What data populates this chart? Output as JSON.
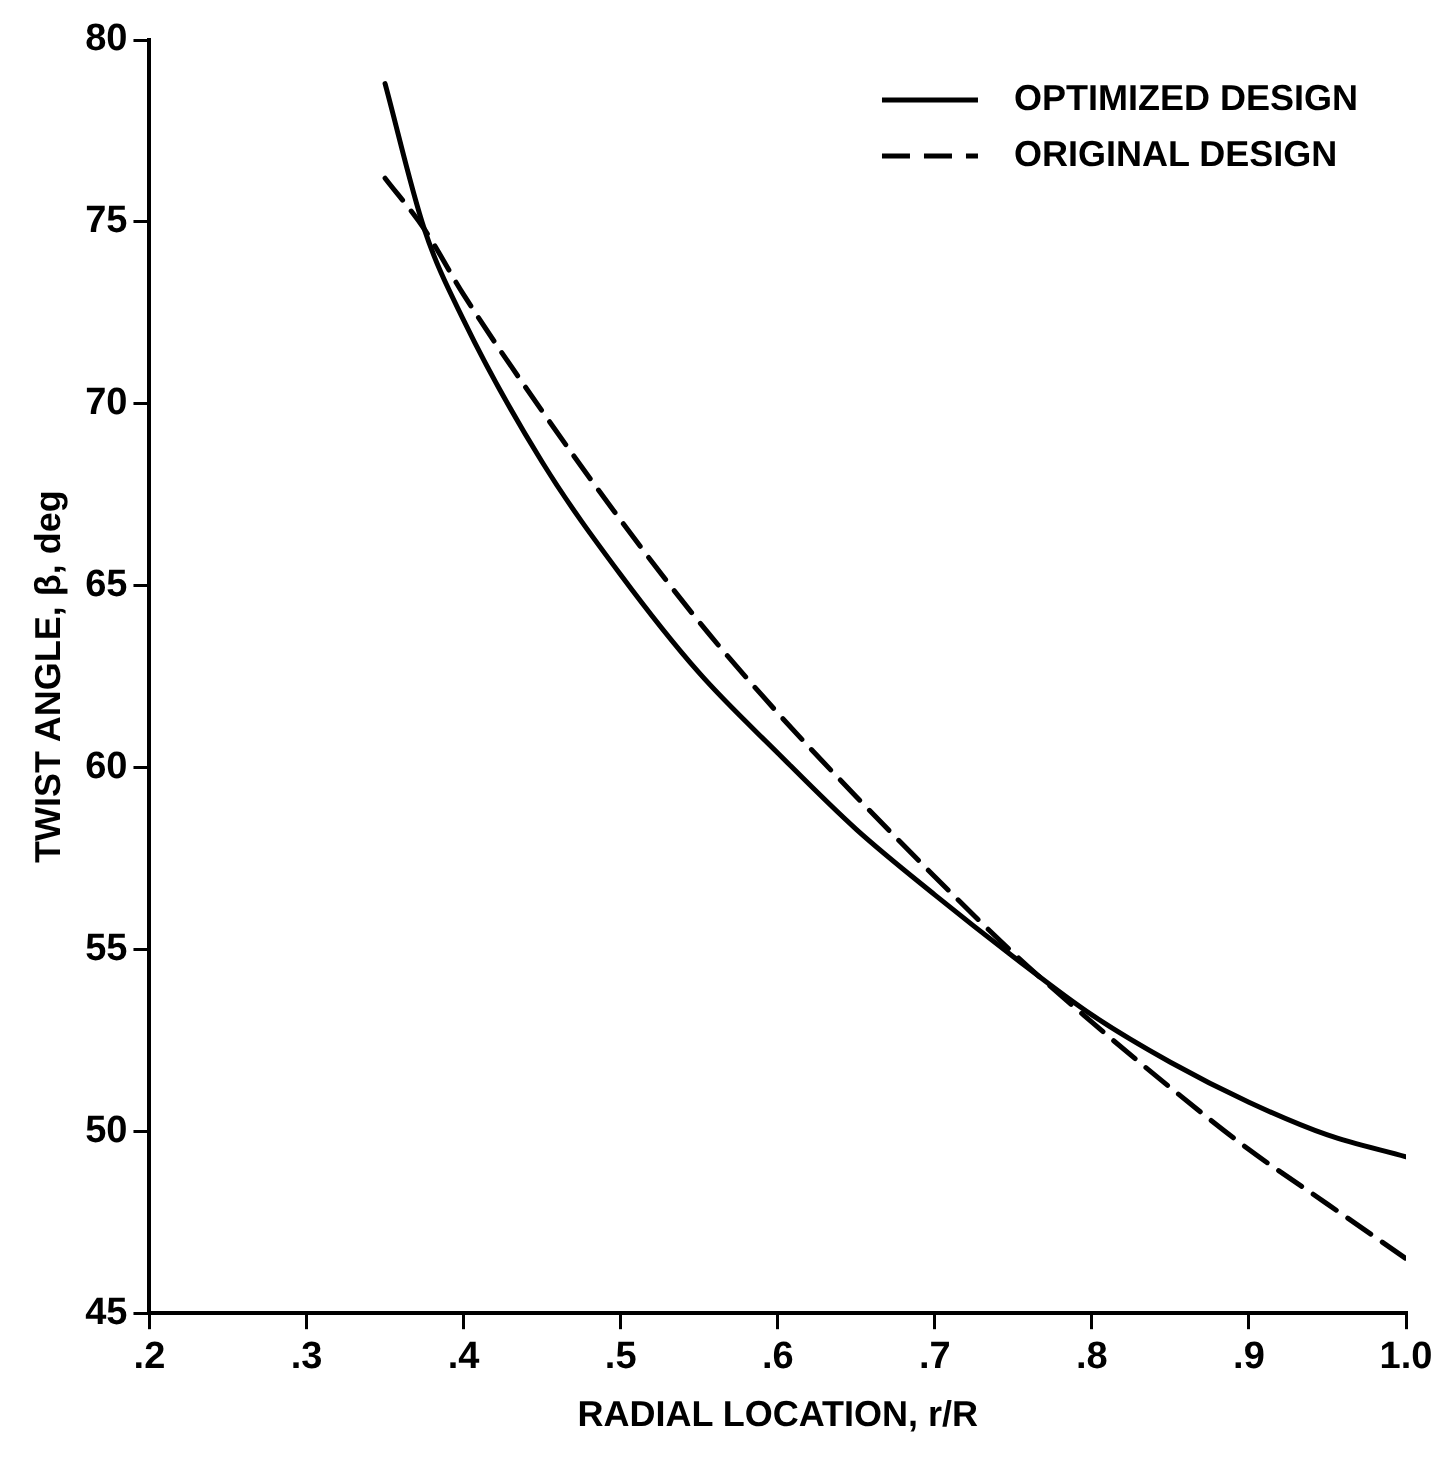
{
  "chart_data": {
    "type": "line",
    "xlabel": "RADIAL LOCATION, r/R",
    "ylabel": "TWIST ANGLE, β, deg",
    "xlim": [
      0.2,
      1.0
    ],
    "xticks": [
      {
        "value": 0.2,
        "label": ".2"
      },
      {
        "value": 0.3,
        "label": ".3"
      },
      {
        "value": 0.4,
        "label": ".4"
      },
      {
        "value": 0.5,
        "label": ".5"
      },
      {
        "value": 0.6,
        "label": ".6"
      },
      {
        "value": 0.7,
        "label": ".7"
      },
      {
        "value": 0.8,
        "label": ".8"
      },
      {
        "value": 0.9,
        "label": ".9"
      },
      {
        "value": 1.0,
        "label": "1.0"
      }
    ],
    "ylim": [
      45,
      80
    ],
    "yticks": [
      45,
      50,
      55,
      60,
      65,
      70,
      75,
      80
    ],
    "x": [
      0.35,
      0.375,
      0.4,
      0.45,
      0.5,
      0.55,
      0.6,
      0.65,
      0.7,
      0.75,
      0.8,
      0.85,
      0.9,
      0.95,
      1.0
    ],
    "series": [
      {
        "name": "OPTIMIZED DESIGN",
        "color": "#000000",
        "line_style": "solid",
        "values": [
          78.8,
          74.8,
          72.3,
          68.4,
          65.3,
          62.6,
          60.4,
          58.3,
          56.5,
          54.8,
          53.2,
          51.9,
          50.8,
          49.9,
          49.3
        ]
      },
      {
        "name": "ORIGINAL DESIGN",
        "color": "#000000",
        "line_style": "dashed",
        "values": [
          76.2,
          74.8,
          73.0,
          69.8,
          66.8,
          64.0,
          61.5,
          59.2,
          57.0,
          54.9,
          53.0,
          51.2,
          49.5,
          48.0,
          46.5
        ]
      }
    ],
    "legend": "top right",
    "grid": false,
    "marker": "none"
  }
}
